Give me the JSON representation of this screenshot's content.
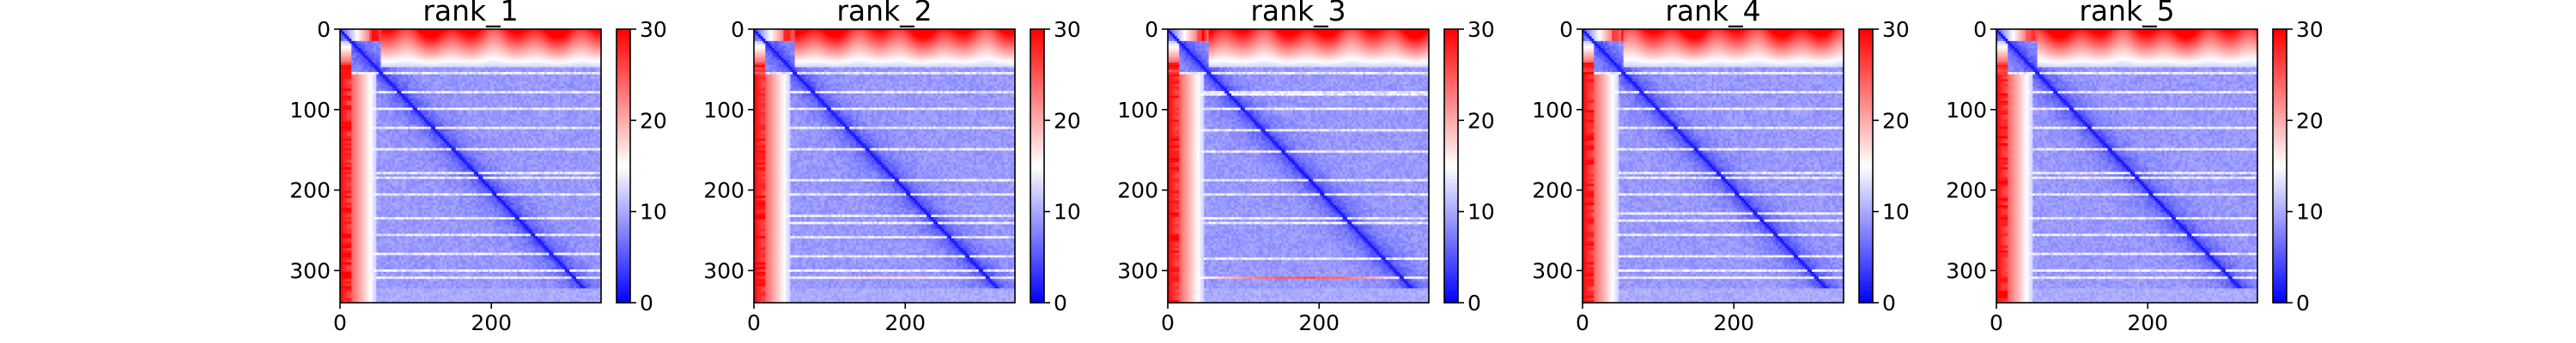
{
  "chart_data": [
    {
      "type": "heatmap",
      "title": "rank_1",
      "xlabel": "",
      "ylabel": "",
      "xlim": [
        0,
        345
      ],
      "ylim": [
        340,
        0
      ],
      "xticks": [
        0,
        200
      ],
      "yticks": [
        0,
        100,
        200,
        300
      ],
      "colorbar": {
        "ticks": [
          0,
          10,
          20,
          30
        ],
        "range": [
          0,
          30
        ],
        "colormap": "bwr"
      },
      "colors": {
        "low": "#0000ff",
        "mid": "#ffffff",
        "high": "#ff0000"
      },
      "bright_rows": [
        55,
        78,
        100,
        122,
        150,
        178,
        185,
        205,
        228,
        235,
        255,
        280,
        300,
        308
      ],
      "strong_row": 308,
      "strong_row_max": 12
    },
    {
      "type": "heatmap",
      "title": "rank_2",
      "xlabel": "",
      "ylabel": "",
      "xlim": [
        0,
        345
      ],
      "ylim": [
        340,
        0
      ],
      "xticks": [
        0,
        200
      ],
      "yticks": [
        0,
        100,
        200,
        300
      ],
      "colorbar": {
        "ticks": [
          0,
          10,
          20,
          30
        ],
        "range": [
          0,
          30
        ],
        "colormap": "bwr"
      },
      "colors": {
        "low": "#0000ff",
        "mid": "#ffffff",
        "high": "#ff0000"
      },
      "bright_rows": [
        55,
        78,
        100,
        122,
        150,
        180,
        188,
        205,
        232,
        240,
        258,
        282,
        300,
        308
      ],
      "strong_row": 308,
      "strong_row_max": 16
    },
    {
      "type": "heatmap",
      "title": "rank_3",
      "xlabel": "",
      "ylabel": "",
      "xlim": [
        0,
        345
      ],
      "ylim": [
        340,
        0
      ],
      "xticks": [
        0,
        200
      ],
      "yticks": [
        0,
        100,
        200,
        300
      ],
      "colorbar": {
        "ticks": [
          0,
          10,
          20,
          30
        ],
        "range": [
          0,
          30
        ],
        "colormap": "bwr"
      },
      "colors": {
        "low": "#0000ff",
        "mid": "#ffffff",
        "high": "#ff0000"
      },
      "bright_rows": [
        55,
        78,
        82,
        100,
        125,
        152,
        180,
        188,
        205,
        235,
        240,
        260,
        285,
        302,
        308
      ],
      "strong_row": 308,
      "strong_row_max": 24
    },
    {
      "type": "heatmap",
      "title": "rank_4",
      "xlabel": "",
      "ylabel": "",
      "xlim": [
        0,
        345
      ],
      "ylim": [
        340,
        0
      ],
      "xticks": [
        0,
        200
      ],
      "yticks": [
        0,
        100,
        200,
        300
      ],
      "colorbar": {
        "ticks": [
          0,
          10,
          20,
          30
        ],
        "range": [
          0,
          30
        ],
        "colormap": "bwr"
      },
      "colors": {
        "low": "#0000ff",
        "mid": "#ffffff",
        "high": "#ff0000"
      },
      "bright_rows": [
        55,
        78,
        100,
        122,
        150,
        178,
        185,
        205,
        230,
        238,
        255,
        282,
        300,
        308
      ],
      "strong_row": 308,
      "strong_row_max": 14
    },
    {
      "type": "heatmap",
      "title": "rank_5",
      "xlabel": "",
      "ylabel": "",
      "xlim": [
        0,
        345
      ],
      "ylim": [
        340,
        0
      ],
      "xticks": [
        0,
        200
      ],
      "yticks": [
        0,
        100,
        200,
        300
      ],
      "colorbar": {
        "ticks": [
          0,
          10,
          20,
          30
        ],
        "range": [
          0,
          30
        ],
        "colormap": "bwr"
      },
      "colors": {
        "low": "#0000ff",
        "mid": "#ffffff",
        "high": "#ff0000"
      },
      "bright_rows": [
        55,
        78,
        100,
        122,
        150,
        178,
        185,
        205,
        228,
        235,
        255,
        280,
        300,
        308
      ],
      "strong_row": 308,
      "strong_row_max": 12
    }
  ]
}
